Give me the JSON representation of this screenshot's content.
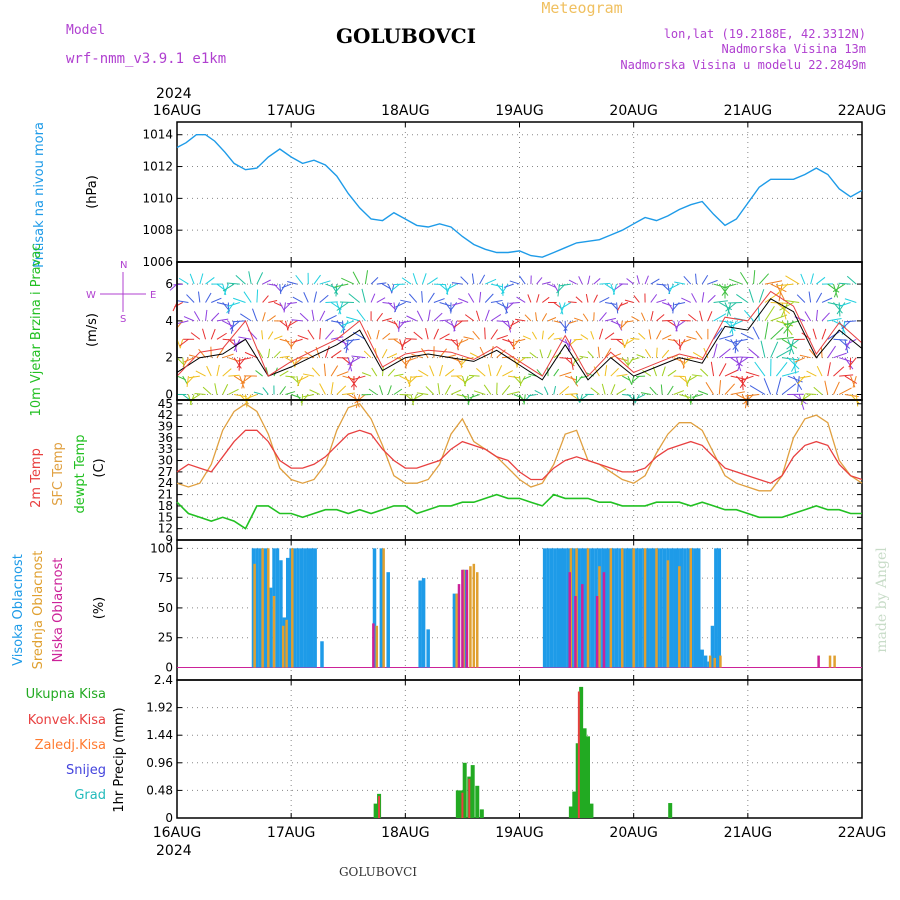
{
  "header": {
    "model_label": "Model",
    "model_name": "wrf-nmm_v3.9.1 e1km",
    "title": "GOLUBOVCI",
    "meteogram": "Meteogram",
    "lonlat": "lon,lat (19.2188E, 42.3312N)",
    "elevation": "Nadmorska Visina 13m",
    "model_elevation": "Nadmorska Visina u modelu 22.2849m",
    "footer_title": "GOLUBOVCI",
    "watermark": "made by Angel"
  },
  "colors": {
    "pressure": "#1e9be8",
    "t2m": "#e84040",
    "sfc": "#e0a040",
    "dewpt": "#22c022",
    "high_cloud": "#1e9be8",
    "mid_cloud": "#e0a030",
    "low_cloud": "#cc2299",
    "total_precip": "#22aa22",
    "conv_precip": "#e84040",
    "froz_precip": "#ff7a30",
    "snow": "#4444dd",
    "grad": "#22bbbb",
    "wind_label": "#22c022",
    "compass": "#b040d0"
  },
  "time_axis": {
    "year": "2024",
    "ticks": [
      "16AUG",
      "17AUG",
      "18AUG",
      "19AUG",
      "20AUG",
      "21AUG",
      "22AUG"
    ]
  },
  "chart_data": [
    {
      "type": "line",
      "panel": "pressure",
      "ylabel": "Pritisak na nivou mora",
      "unit": "(hPa)",
      "ylim": [
        1006,
        1014.8
      ],
      "yticks": [
        1006,
        1008,
        1010,
        1012,
        1014
      ],
      "x": [
        0,
        0.08,
        0.17,
        0.25,
        0.33,
        0.42,
        0.5,
        0.6,
        0.7,
        0.8,
        0.9,
        1.0,
        1.1,
        1.2,
        1.3,
        1.4,
        1.5,
        1.6,
        1.7,
        1.8,
        1.9,
        2.0,
        2.1,
        2.2,
        2.3,
        2.4,
        2.5,
        2.6,
        2.7,
        2.8,
        2.9,
        3.0,
        3.1,
        3.2,
        3.3,
        3.4,
        3.5,
        3.6,
        3.7,
        3.8,
        3.9,
        4.0,
        4.1,
        4.2,
        4.3,
        4.4,
        4.5,
        4.6,
        4.7,
        4.8,
        4.9,
        5.0,
        5.1,
        5.2,
        5.3,
        5.4,
        5.5,
        5.6,
        5.7,
        5.8,
        5.9,
        6.0
      ],
      "series": [
        {
          "values": [
            1013.2,
            1013.5,
            1014.0,
            1014.0,
            1013.6,
            1012.9,
            1012.2,
            1011.8,
            1011.9,
            1012.6,
            1013.1,
            1012.6,
            1012.2,
            1012.4,
            1012.1,
            1011.4,
            1010.3,
            1009.4,
            1008.7,
            1008.6,
            1009.1,
            1008.7,
            1008.3,
            1008.2,
            1008.4,
            1008.2,
            1007.6,
            1007.1,
            1006.8,
            1006.6,
            1006.6,
            1006.7,
            1006.4,
            1006.3,
            1006.6,
            1006.9,
            1007.2,
            1007.3,
            1007.4,
            1007.7,
            1008.0,
            1008.4,
            1008.8,
            1008.6,
            1008.9,
            1009.3,
            1009.6,
            1009.8,
            1009.0,
            1008.3,
            1008.7,
            1009.7,
            1010.7,
            1011.2,
            1011.2,
            1011.2,
            1011.5,
            1011.9,
            1011.5,
            1010.6,
            1010.1,
            1010.5
          ]
        }
      ]
    },
    {
      "type": "line",
      "panel": "wind",
      "ylabel": "10m Vjetar Brzina i Pravac",
      "unit": "(m/s)",
      "compass": [
        "W",
        "S",
        "N",
        "E"
      ],
      "ylim": [
        -0.3,
        7.2
      ],
      "yticks": [
        0,
        2,
        4,
        6
      ],
      "x": [
        0,
        0.2,
        0.4,
        0.6,
        0.8,
        1.0,
        1.2,
        1.4,
        1.6,
        1.8,
        2.0,
        2.2,
        2.4,
        2.6,
        2.8,
        3.0,
        3.2,
        3.4,
        3.6,
        3.8,
        4.0,
        4.2,
        4.4,
        4.6,
        4.8,
        5.0,
        5.2,
        5.4,
        5.6,
        5.8,
        6.0
      ],
      "series": [
        {
          "name": "speed",
          "values": [
            1.2,
            2.0,
            2.2,
            3.0,
            1.0,
            1.5,
            2.1,
            2.7,
            3.5,
            1.3,
            2.0,
            2.2,
            2.0,
            1.8,
            2.4,
            1.6,
            0.8,
            2.7,
            0.8,
            2.0,
            1.0,
            1.5,
            2.0,
            1.7,
            3.7,
            3.5,
            5.2,
            4.5,
            2.0,
            3.5,
            2.5
          ]
        },
        {
          "name": "gust",
          "values": [
            1.0,
            2.3,
            2.5,
            4.0,
            1.0,
            1.8,
            2.4,
            3.0,
            4.0,
            1.5,
            2.2,
            2.4,
            2.3,
            1.9,
            2.6,
            1.8,
            1.0,
            3.2,
            1.0,
            2.3,
            1.2,
            1.7,
            2.2,
            1.9,
            4.2,
            4.0,
            5.6,
            4.8,
            2.2,
            3.9,
            2.8
          ]
        }
      ]
    },
    {
      "type": "line",
      "panel": "temperature",
      "ylabels": [
        "2m Temp",
        "SFC Temp",
        "dewpt Temp"
      ],
      "unit": "(C)",
      "ylim": [
        9,
        46
      ],
      "yticks": [
        9,
        12,
        15,
        18,
        21,
        24,
        27,
        30,
        33,
        36,
        39,
        42,
        45
      ],
      "x": [
        0,
        0.1,
        0.2,
        0.3,
        0.4,
        0.5,
        0.6,
        0.7,
        0.8,
        0.9,
        1.0,
        1.1,
        1.2,
        1.3,
        1.4,
        1.5,
        1.6,
        1.7,
        1.8,
        1.9,
        2.0,
        2.1,
        2.2,
        2.3,
        2.4,
        2.5,
        2.6,
        2.7,
        2.8,
        2.9,
        3.0,
        3.1,
        3.2,
        3.3,
        3.4,
        3.5,
        3.6,
        3.7,
        3.8,
        3.9,
        4.0,
        4.1,
        4.2,
        4.3,
        4.4,
        4.5,
        4.6,
        4.7,
        4.8,
        4.9,
        5.0,
        5.1,
        5.2,
        5.3,
        5.4,
        5.5,
        5.6,
        5.7,
        5.8,
        5.9,
        6.0
      ],
      "series": [
        {
          "name": "2m Temp",
          "values": [
            27,
            29,
            28,
            27,
            31,
            35,
            38,
            38,
            35,
            30,
            28,
            28,
            29,
            31,
            34,
            37,
            38,
            37,
            33,
            30,
            28,
            28,
            29,
            30,
            33,
            35,
            34,
            33,
            31,
            30,
            27,
            25,
            25,
            28,
            30,
            31,
            30,
            29,
            28,
            27,
            27,
            28,
            31,
            33,
            34,
            35,
            34,
            31,
            28,
            27,
            26,
            25,
            24,
            26,
            31,
            34,
            35,
            34,
            29,
            26,
            25
          ]
        },
        {
          "name": "SFC Temp",
          "values": [
            24,
            23,
            24,
            29,
            38,
            43,
            45,
            43,
            37,
            28,
            25,
            24,
            25,
            29,
            38,
            44,
            45,
            41,
            34,
            26,
            24,
            24,
            25,
            29,
            37,
            41,
            35,
            33,
            31,
            28,
            25,
            23,
            24,
            29,
            37,
            38,
            30,
            29,
            27,
            25,
            24,
            26,
            32,
            37,
            40,
            40,
            38,
            32,
            26,
            24,
            23,
            22,
            22,
            26,
            36,
            41,
            42,
            40,
            30,
            26,
            24
          ]
        },
        {
          "name": "dewpt Temp",
          "values": [
            19,
            16,
            15,
            14,
            15,
            14,
            12,
            18,
            18,
            16,
            16,
            15,
            16,
            17,
            17,
            16,
            17,
            16,
            17,
            18,
            18,
            16,
            17,
            18,
            18,
            19,
            19,
            20,
            21,
            20,
            20,
            19,
            18,
            21,
            20,
            20,
            20,
            19,
            19,
            18,
            18,
            18,
            19,
            19,
            19,
            18,
            19,
            18,
            17,
            17,
            16,
            15,
            15,
            15,
            16,
            17,
            18,
            17,
            17,
            16,
            16
          ]
        }
      ]
    },
    {
      "type": "bar",
      "panel": "cloud",
      "ylabels": [
        "Visoka Oblacnost",
        "Srednja Oblacnost",
        "Niska Oblacnost"
      ],
      "unit": "(%)",
      "ylim": [
        0,
        100
      ],
      "yticks": [
        0,
        25,
        50,
        75,
        100
      ],
      "series": [
        {
          "name": "Visoka Oblacnost",
          "x": [
            0.67,
            0.7,
            0.73,
            0.76,
            0.79,
            0.82,
            0.85,
            0.88,
            0.91,
            0.94,
            0.97,
            1.0,
            1.03,
            1.06,
            1.09,
            1.12,
            1.15,
            1.18,
            1.21,
            1.27,
            1.73,
            1.79,
            1.85,
            2.13,
            2.16,
            2.2,
            2.43,
            2.46,
            2.52,
            3.22,
            3.25,
            3.28,
            3.31,
            3.34,
            3.37,
            3.4,
            3.43,
            3.46,
            3.49,
            3.52,
            3.55,
            3.58,
            3.61,
            3.64,
            3.67,
            3.7,
            3.73,
            3.76,
            3.79,
            3.82,
            3.85,
            3.88,
            3.91,
            3.94,
            3.97,
            4.0,
            4.03,
            4.06,
            4.09,
            4.12,
            4.15,
            4.18,
            4.21,
            4.24,
            4.27,
            4.3,
            4.33,
            4.36,
            4.39,
            4.42,
            4.45,
            4.48,
            4.51,
            4.54,
            4.57,
            4.6,
            4.63,
            4.66,
            4.69,
            4.72,
            4.75
          ],
          "values": [
            100,
            100,
            100,
            100,
            100,
            67,
            100,
            100,
            90,
            42,
            92,
            100,
            100,
            100,
            100,
            100,
            100,
            100,
            100,
            22,
            100,
            100,
            80,
            73,
            75,
            32,
            62,
            62,
            82,
            100,
            100,
            100,
            100,
            100,
            100,
            100,
            100,
            100,
            100,
            100,
            100,
            100,
            100,
            100,
            100,
            100,
            100,
            100,
            100,
            100,
            100,
            100,
            100,
            100,
            100,
            100,
            100,
            100,
            100,
            100,
            100,
            100,
            100,
            100,
            100,
            100,
            100,
            100,
            100,
            100,
            100,
            100,
            100,
            100,
            100,
            15,
            10,
            5,
            35,
            100,
            100
          ]
        },
        {
          "name": "Srednja Oblacnost",
          "x": [
            0.68,
            0.75,
            0.8,
            0.85,
            0.93,
            0.96,
            1.01,
            1.75,
            1.81,
            2.45,
            2.51,
            2.57,
            2.6,
            2.63,
            3.45,
            3.5,
            3.6,
            3.7,
            3.8,
            3.9,
            4.0,
            4.1,
            4.2,
            4.3,
            4.4,
            4.5,
            4.67,
            4.71,
            4.76,
            5.72,
            5.76
          ],
          "values": [
            87,
            100,
            100,
            60,
            35,
            40,
            100,
            35,
            100,
            62,
            82,
            85,
            87,
            80,
            100,
            100,
            100,
            85,
            100,
            100,
            100,
            100,
            100,
            90,
            85,
            100,
            10,
            8,
            10,
            10,
            10
          ]
        },
        {
          "name": "Niska Oblacnost",
          "x": [
            1.72,
            2.47,
            2.5,
            2.54,
            3.44,
            3.49,
            3.55,
            3.68,
            3.74,
            5.62
          ],
          "values": [
            37,
            70,
            82,
            82,
            80,
            60,
            70,
            60,
            80,
            10
          ]
        }
      ]
    },
    {
      "type": "bar",
      "panel": "precip",
      "ylabels": [
        "Ukupna Kisa",
        "Konvek.Kisa",
        "Zaledj.Kisa",
        "Snijeg",
        "Grad"
      ],
      "unit": "1hr Precip (mm)",
      "ylim": [
        0,
        2.4
      ],
      "yticks": [
        0,
        0.48,
        0.96,
        1.44,
        1.92,
        2.4
      ],
      "series": [
        {
          "name": "Ukupna Kisa",
          "x": [
            1.74,
            1.77,
            2.46,
            2.49,
            2.52,
            2.56,
            2.59,
            2.63,
            2.67,
            3.45,
            3.48,
            3.51,
            3.54,
            3.57,
            3.6,
            3.63,
            4.32
          ],
          "values": [
            0.25,
            0.42,
            0.48,
            0.48,
            0.96,
            0.72,
            0.92,
            0.56,
            0.15,
            0.2,
            0.46,
            1.3,
            2.28,
            1.56,
            1.42,
            0.25,
            0.26
          ]
        },
        {
          "name": "Konvek.Kisa",
          "x": [
            1.77,
            2.5,
            2.56,
            3.52
          ],
          "values": [
            0.38,
            0.44,
            0.68,
            2.2
          ]
        }
      ]
    }
  ]
}
